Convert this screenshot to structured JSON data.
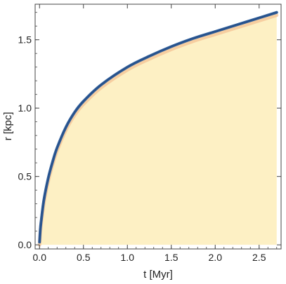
{
  "chart_data": {
    "type": "area",
    "title": "",
    "xlabel": "t [Myr]",
    "ylabel": "r [kpc]",
    "xlim": [
      -0.05,
      2.75
    ],
    "ylim": [
      -0.03,
      1.76
    ],
    "x_ticks": [
      "0.0",
      "0.5",
      "1.0",
      "1.5",
      "2.0",
      "2.5"
    ],
    "y_ticks": [
      "0.0",
      "0.5",
      "1.0",
      "1.5"
    ],
    "grid": false,
    "legend": "none",
    "series": [
      {
        "x": [
          0.0,
          0.01,
          0.02,
          0.05,
          0.1,
          0.15,
          0.2,
          0.3,
          0.4,
          0.5,
          0.7,
          1.0,
          1.25,
          1.5,
          1.75,
          2.0,
          2.25,
          2.5,
          2.7
        ],
        "y": [
          0.02,
          0.12,
          0.18,
          0.33,
          0.49,
          0.61,
          0.71,
          0.86,
          0.97,
          1.05,
          1.17,
          1.3,
          1.38,
          1.45,
          1.51,
          1.56,
          1.61,
          1.66,
          1.7
        ]
      }
    ],
    "colors": {
      "fill": "#fdf0c4",
      "fill_edge": "#f4bf92",
      "boundary": "#2f5f9c",
      "boundary_dark": "#264a80",
      "frame": "#444444"
    }
  }
}
